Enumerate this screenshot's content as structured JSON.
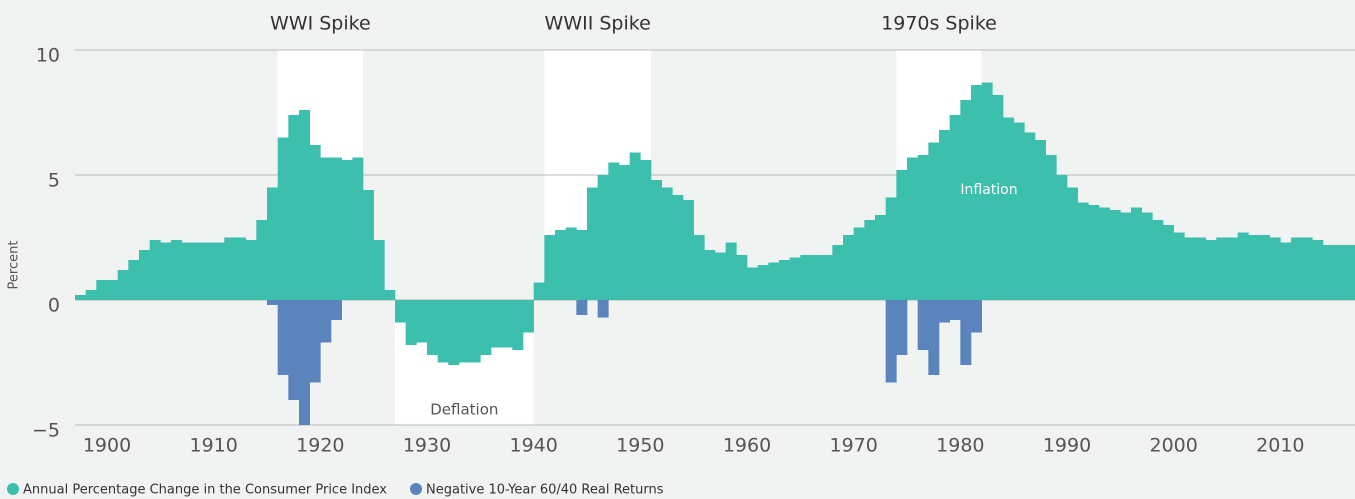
{
  "chart_data": {
    "type": "bar",
    "ylabel": "Percent",
    "xlim": [
      1897,
      2017
    ],
    "ylim": [
      -5,
      10
    ],
    "xticks": [
      1900,
      1910,
      1920,
      1930,
      1940,
      1950,
      1960,
      1970,
      1980,
      1990,
      2000,
      2010
    ],
    "yticks": [
      {
        "value": -5,
        "label": "−5"
      },
      0,
      5,
      10
    ],
    "grid": true,
    "highlights": [
      {
        "label": "WWI Spike",
        "xrange": [
          1916,
          1924
        ],
        "yrange": [
          0,
          10
        ]
      },
      {
        "label": "WWII Spike",
        "xrange": [
          1941,
          1951
        ],
        "yrange": [
          0,
          10
        ]
      },
      {
        "label": "1970s Spike",
        "xrange": [
          1974,
          1982
        ],
        "yrange": [
          0,
          10
        ]
      },
      {
        "label": "Deflation",
        "xrange": [
          1927,
          1940
        ],
        "yrange": [
          -5,
          0
        ]
      }
    ],
    "annotations": [
      "Inflation"
    ],
    "series": [
      {
        "name": "Annual Percentage Change in the Consumer Price Index",
        "color": "#3dbfad",
        "x": [
          1897,
          1898,
          1899,
          1900,
          1901,
          1902,
          1903,
          1904,
          1905,
          1906,
          1907,
          1908,
          1909,
          1910,
          1911,
          1912,
          1913,
          1914,
          1915,
          1916,
          1917,
          1918,
          1919,
          1920,
          1921,
          1922,
          1923,
          1924,
          1925,
          1926,
          1927,
          1928,
          1929,
          1930,
          1931,
          1932,
          1933,
          1934,
          1935,
          1936,
          1937,
          1938,
          1939,
          1940,
          1941,
          1942,
          1943,
          1944,
          1945,
          1946,
          1947,
          1948,
          1949,
          1950,
          1951,
          1952,
          1953,
          1954,
          1955,
          1956,
          1957,
          1958,
          1959,
          1960,
          1961,
          1962,
          1963,
          1964,
          1965,
          1966,
          1967,
          1968,
          1969,
          1970,
          1971,
          1972,
          1973,
          1974,
          1975,
          1976,
          1977,
          1978,
          1979,
          1980,
          1981,
          1982,
          1983,
          1984,
          1985,
          1986,
          1987,
          1988,
          1989,
          1990,
          1991,
          1992,
          1993,
          1994,
          1995,
          1996,
          1997,
          1998,
          1999,
          2000,
          2001,
          2002,
          2003,
          2004,
          2005,
          2006,
          2007,
          2008,
          2009,
          2010,
          2011,
          2012,
          2013,
          2014,
          2015,
          2016
        ],
        "values": [
          0.2,
          0.4,
          0.8,
          0.8,
          1.2,
          1.6,
          2.0,
          2.4,
          2.3,
          2.4,
          2.3,
          2.3,
          2.3,
          2.3,
          2.5,
          2.5,
          2.4,
          3.2,
          4.5,
          6.5,
          7.4,
          7.6,
          6.2,
          5.7,
          5.7,
          5.6,
          5.7,
          4.4,
          2.4,
          0.4,
          -0.9,
          -1.8,
          -1.7,
          -2.2,
          -2.5,
          -2.6,
          -2.5,
          -2.5,
          -2.2,
          -1.9,
          -1.9,
          -2.0,
          -1.3,
          0.7,
          2.6,
          2.8,
          2.9,
          2.8,
          4.5,
          5.0,
          5.5,
          5.4,
          5.9,
          5.6,
          4.8,
          4.5,
          4.2,
          4.0,
          2.6,
          2.0,
          1.9,
          2.3,
          1.8,
          1.3,
          1.4,
          1.5,
          1.6,
          1.7,
          1.8,
          1.8,
          1.8,
          2.2,
          2.6,
          2.9,
          3.2,
          3.4,
          4.1,
          5.2,
          5.7,
          5.8,
          6.3,
          6.8,
          7.4,
          8.0,
          8.6,
          8.7,
          8.2,
          7.3,
          7.1,
          6.7,
          6.4,
          5.8,
          5.0,
          4.5,
          3.9,
          3.8,
          3.7,
          3.6,
          3.5,
          3.7,
          3.5,
          3.2,
          3.0,
          2.7,
          2.5,
          2.5,
          2.4,
          2.5,
          2.5,
          2.7,
          2.6,
          2.6,
          2.5,
          2.3,
          2.5,
          2.5,
          2.4,
          2.2,
          2.2,
          2.2
        ]
      },
      {
        "name": "Negative 10-Year 60/40 Real Returns",
        "color": "#5b84bd",
        "x": [
          1915,
          1916,
          1917,
          1918,
          1919,
          1920,
          1921,
          1944,
          1946,
          1973,
          1974,
          1976,
          1977,
          1978,
          1979,
          1980,
          1981
        ],
        "values": [
          -0.2,
          -3.0,
          -4.0,
          -5.0,
          -3.3,
          -1.7,
          -0.8,
          -0.6,
          -0.7,
          -3.3,
          -2.2,
          -2.0,
          -3.0,
          -0.9,
          -0.8,
          -2.6,
          -1.3
        ]
      }
    ]
  }
}
